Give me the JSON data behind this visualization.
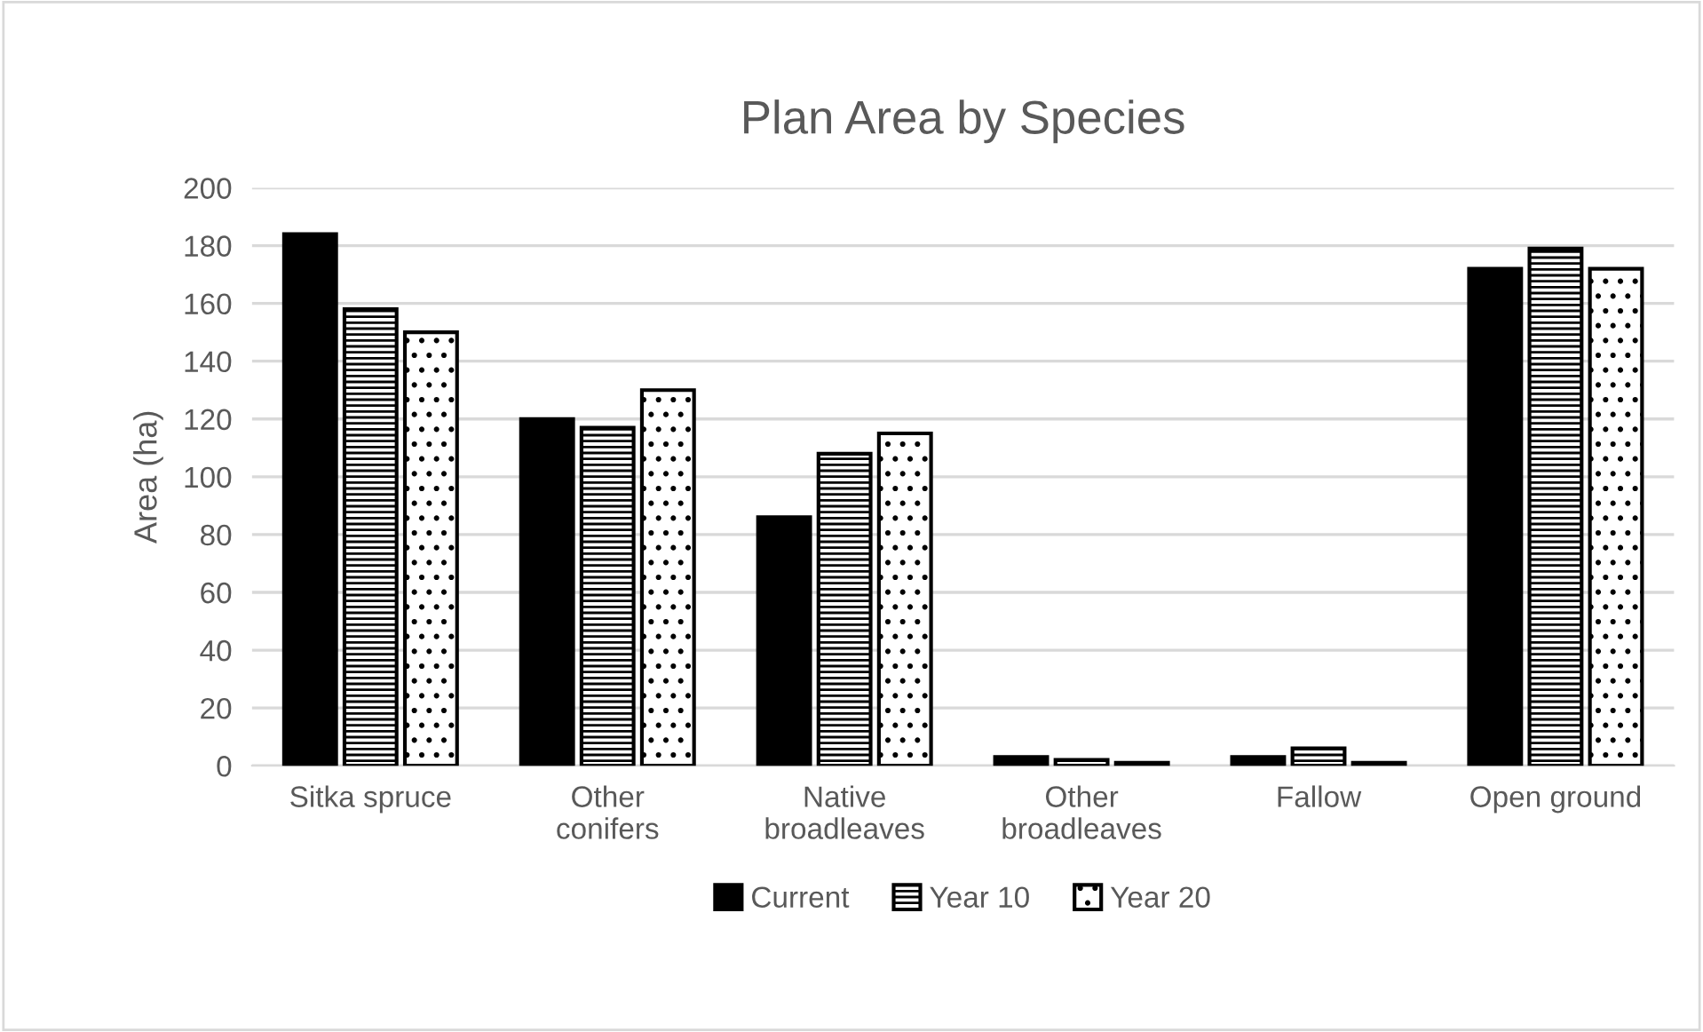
{
  "chart_data": {
    "type": "bar",
    "title": "Plan Area by Species",
    "ylabel": "Area (ha)",
    "categories": [
      "Sitka spruce",
      "Other conifers",
      "Native broadleaves",
      "Other broadleaves",
      "Fallow",
      "Open ground"
    ],
    "series": [
      {
        "name": "Current",
        "color": "#000000",
        "values": [
          184,
          120,
          86,
          3,
          3,
          172
        ]
      },
      {
        "name": "Year 10",
        "color": "#000000",
        "values": [
          158,
          117,
          108,
          2,
          6,
          179
        ]
      },
      {
        "name": "Year 20",
        "color": "#000000",
        "values": [
          150,
          130,
          115,
          1,
          1,
          172
        ]
      }
    ],
    "ylim": [
      0,
      200
    ],
    "yticks": [
      0,
      20,
      40,
      60,
      80,
      100,
      120,
      140,
      160,
      180,
      200
    ],
    "grid": "y",
    "legend": "bottom"
  }
}
